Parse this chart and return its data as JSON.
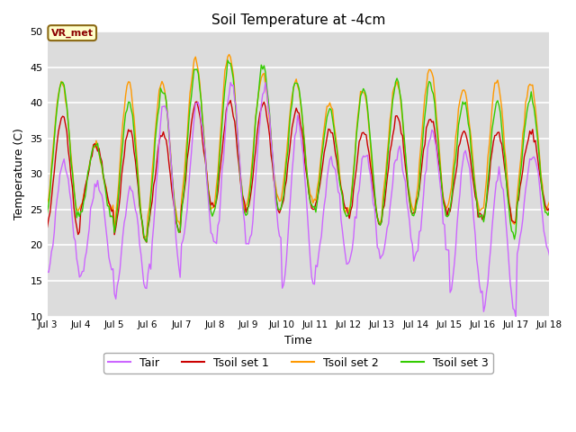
{
  "title": "Soil Temperature at -4cm",
  "xlabel": "Time",
  "ylabel": "Temperature (C)",
  "ylim": [
    10,
    50
  ],
  "xlim": [
    0,
    360
  ],
  "plot_bg_color": "#dcdcdc",
  "fig_bg_color": "#ffffff",
  "annotation_text": "VR_met",
  "annotation_bg": "#ffffcc",
  "annotation_border": "#8B6914",
  "annotation_text_color": "#8B0000",
  "series_colors": {
    "Tair": "#cc66ff",
    "Tsoil1": "#cc0000",
    "Tsoil2": "#ff9900",
    "Tsoil3": "#33cc00"
  },
  "legend_labels": [
    "Tair",
    "Tsoil set 1",
    "Tsoil set 2",
    "Tsoil set 3"
  ],
  "xtick_labels": [
    "Jul 3",
    "Jul 4",
    "Jul 5",
    "Jul 6",
    "Jul 7",
    "Jul 8",
    "Jul 9",
    "Jul 10",
    "Jul 11",
    "Jul 12",
    "Jul 13",
    "Jul 14",
    "Jul 15",
    "Jul 16",
    "Jul 17",
    "Jul 18"
  ],
  "xtick_positions": [
    0,
    24,
    48,
    72,
    96,
    120,
    144,
    168,
    192,
    216,
    240,
    264,
    288,
    312,
    336,
    360
  ],
  "ytick_positions": [
    10,
    15,
    20,
    25,
    30,
    35,
    40,
    45,
    50
  ]
}
